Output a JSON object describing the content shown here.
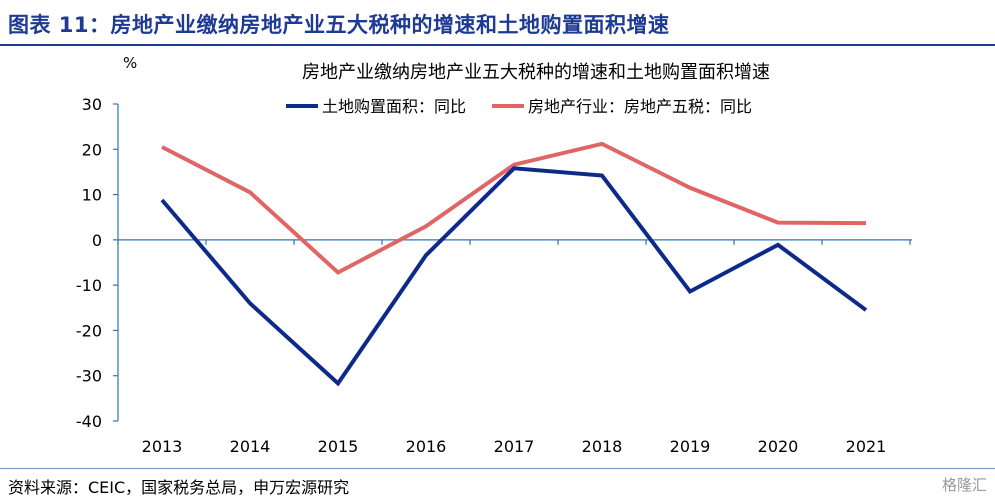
{
  "figure_title": "图表 11：房地产业缴纳房地产业五大税种的增速和土地购置面积增速",
  "source": "资料来源：CEIC，国家税务总局，申万宏源研究",
  "watermark": "格隆汇",
  "colors": {
    "title_blue": "#1f3a93",
    "series_land": "#0d2a8a",
    "series_tax": "#e06666",
    "axis": "#2e75b6"
  },
  "chart_data": {
    "type": "line",
    "title": "房地产业缴纳房地产业五大税种的增速和土地购置面积增速",
    "ylabel": "%",
    "xlabel": "",
    "x": [
      "2013",
      "2014",
      "2015",
      "2016",
      "2017",
      "2018",
      "2019",
      "2020",
      "2021"
    ],
    "ylim": [
      -40,
      30
    ],
    "yticks": [
      "30",
      "20",
      "10",
      "0",
      "-10",
      "-20",
      "-30",
      "-40"
    ],
    "grid": false,
    "legend_position": "top",
    "series": [
      {
        "name": "土地购置面积：同比",
        "color": "#0d2a8a",
        "values": [
          8.8,
          -14.0,
          -31.7,
          -3.4,
          15.8,
          14.2,
          -11.4,
          -1.1,
          -15.5
        ]
      },
      {
        "name": "房地产行业：房地产五税：同比",
        "color": "#e06666",
        "values": [
          20.5,
          10.5,
          -7.2,
          3.0,
          16.6,
          21.2,
          11.5,
          3.8,
          3.7
        ]
      }
    ]
  }
}
